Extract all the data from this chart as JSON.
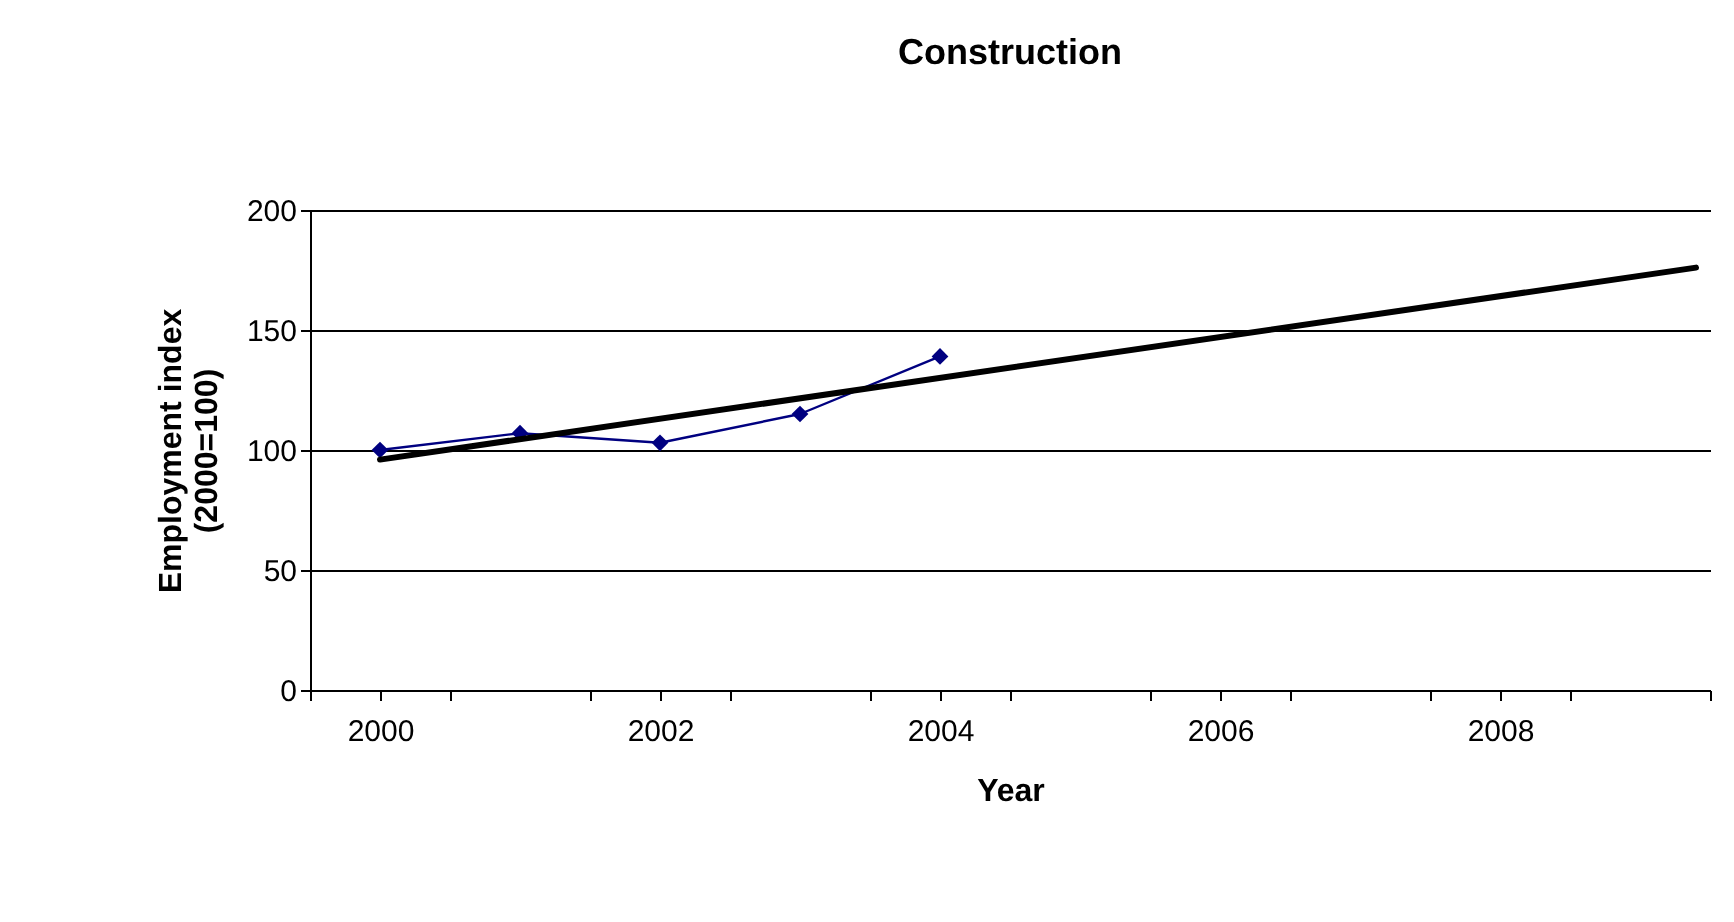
{
  "chart_data": {
    "type": "line",
    "title": "Construction",
    "xlabel": "Year",
    "ylabel": "Employment index\n(2000=100)",
    "x": [
      2000,
      2001,
      2002,
      2003,
      2004
    ],
    "series": [
      {
        "color": "#000080",
        "values": [
          100,
          107,
          103,
          115,
          139
        ],
        "marker": "diamond"
      },
      {
        "color": "#000000",
        "x": [
          2000,
          2009.4
        ],
        "values": [
          96,
          176
        ],
        "marker": "none"
      }
    ],
    "xlim": [
      1999.5,
      2009.5
    ],
    "xticks": [
      {
        "value": 1999.5,
        "label": null
      },
      2000,
      {
        "value": 2000.5,
        "label": null
      },
      {
        "value": 2001.5,
        "label": null
      },
      2002,
      {
        "value": 2002.5,
        "label": null
      },
      {
        "value": 2003.5,
        "label": null
      },
      2004,
      {
        "value": 2004.5,
        "label": null
      },
      {
        "value": 2005.5,
        "label": null
      },
      2006,
      {
        "value": 2006.5,
        "label": null
      },
      {
        "value": 2007.5,
        "label": null
      },
      2008,
      {
        "value": 2008.5,
        "label": null
      },
      {
        "value": 2009.5,
        "label": null
      }
    ],
    "ylim": [
      0,
      200
    ],
    "yticks": [
      0,
      50,
      100,
      150,
      200
    ],
    "grid": "y",
    "line_style": "solid"
  }
}
